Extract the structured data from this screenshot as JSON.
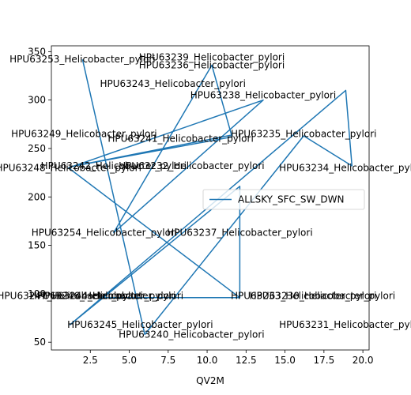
{
  "chart_data": {
    "type": "line",
    "title": "",
    "xlabel": "QV2M",
    "ylabel": "",
    "xlim": [
      0.0,
      20.4
    ],
    "ylim": [
      42,
      356
    ],
    "xticks": [
      2.5,
      5.0,
      7.5,
      10.0,
      12.5,
      15.0,
      17.5,
      20.0
    ],
    "xtick_labels": [
      "2.5",
      "5.0",
      "7.5",
      "10.0",
      "12.5",
      "15.0",
      "17.5",
      "20.0"
    ],
    "yticks": [
      50,
      100,
      150,
      200,
      250,
      300,
      350
    ],
    "ytick_labels": [
      "50",
      "100",
      "150",
      "200",
      "250",
      "300",
      "350"
    ],
    "grid": false,
    "legend": {
      "placement": "center-right",
      "entries": [
        "ALLSKY_SFC_SW_DWN"
      ]
    },
    "series": [
      {
        "name": "ALLSKY_SFC_SW_DWN",
        "color": "#1f77b4",
        "points": [
          {
            "x": 2.0,
            "y": 342
          },
          {
            "x": 6.0,
            "y": 58
          },
          {
            "x": 16.2,
            "y": 263
          },
          {
            "x": 19.3,
            "y": 232
          },
          {
            "x": 18.9,
            "y": 310
          },
          {
            "x": 1.2,
            "y": 68
          },
          {
            "x": 12.1,
            "y": 211
          },
          {
            "x": 12.1,
            "y": 96
          },
          {
            "x": 3.2,
            "y": 96
          },
          {
            "x": 12.1,
            "y": 96
          },
          {
            "x": 1.1,
            "y": 230
          },
          {
            "x": 13.6,
            "y": 300
          },
          {
            "x": 4.0,
            "y": 163
          },
          {
            "x": 10.3,
            "y": 336
          },
          {
            "x": 11.6,
            "y": 262
          },
          {
            "x": 1.5,
            "y": 232
          },
          {
            "x": 11.6,
            "y": 264
          }
        ]
      }
    ],
    "annotations": [
      {
        "text": "HPU63253_Helicobacter_pylori",
        "x": 2.0,
        "y": 342
      },
      {
        "text": "HPU63239_Helicobacter_pylori",
        "x": 10.3,
        "y": 344
      },
      {
        "text": "HPU63236_Helicobacter_pylori",
        "x": 10.3,
        "y": 336
      },
      {
        "text": "HPU63243_Helicobacter_pylori",
        "x": 7.8,
        "y": 317
      },
      {
        "text": "HPU63238_Helicobacter_pylori",
        "x": 13.6,
        "y": 305
      },
      {
        "text": "HPU63249_Helicobacter_pylori",
        "x": 2.1,
        "y": 265
      },
      {
        "text": "HPU63235_Helicobacter_pylori",
        "x": 16.2,
        "y": 265
      },
      {
        "text": "HPU63241_Helicobacter_pylori",
        "x": 8.3,
        "y": 260
      },
      {
        "text": "HPU63248_Helicobacter_pylori",
        "x": 1.1,
        "y": 230
      },
      {
        "text": "HPU63242_Helicobacter_pylori",
        "x": 4.0,
        "y": 232
      },
      {
        "text": "HPU63232_Helicobacter_pylori",
        "x": 9.0,
        "y": 232
      },
      {
        "text": "HPU63234_Helicobacter_pylori",
        "x": 19.3,
        "y": 230
      },
      {
        "text": "HPU63254_Helicobacter_pylori",
        "x": 3.4,
        "y": 163
      },
      {
        "text": "HPU63237_Helicobacter_pylori",
        "x": 12.1,
        "y": 163
      },
      {
        "text": "HPU63247_Helicobacter_pylori",
        "x": 1.2,
        "y": 98
      },
      {
        "text": "HPU63246_Helicobacter_pylori",
        "x": 3.3,
        "y": 98
      },
      {
        "text": "HPU63244_Helicobacter_pylori",
        "x": 3.8,
        "y": 98
      },
      {
        "text": "HPU63233_Helicobacter_pylori",
        "x": 16.2,
        "y": 98
      },
      {
        "text": "HPU63230_Helicobacter_pylori",
        "x": 17.4,
        "y": 98
      },
      {
        "text": "HPU63245_Helicobacter_pylori",
        "x": 5.7,
        "y": 68
      },
      {
        "text": "HPU63231_Helicobacter_pylori",
        "x": 19.3,
        "y": 68
      },
      {
        "text": "HPU63240_Helicobacter_pylori",
        "x": 9.0,
        "y": 58
      }
    ]
  }
}
